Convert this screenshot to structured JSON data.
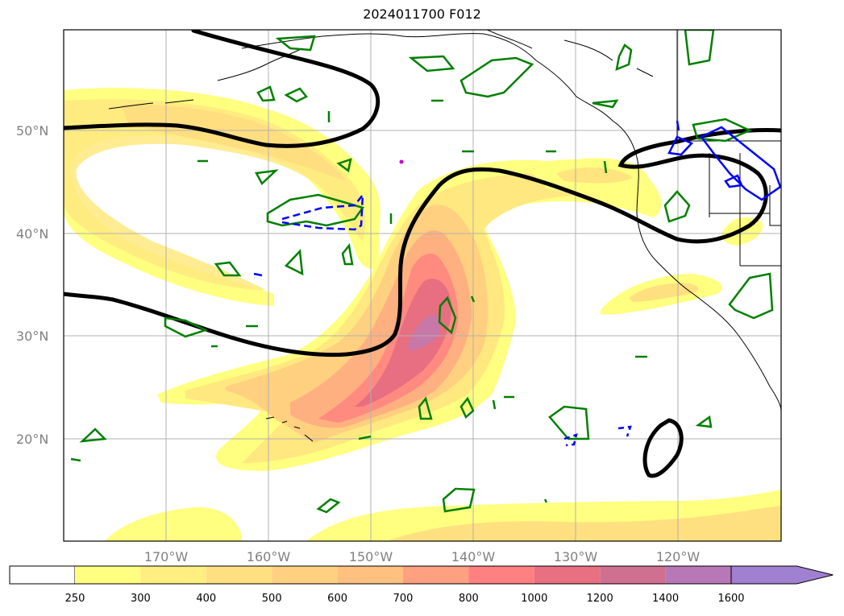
{
  "title": "2024011700 F012",
  "map": {
    "lat_labels": [
      "50°N",
      "40°N",
      "30°N",
      "20°N"
    ],
    "lon_labels": [
      "170°W",
      "160°W",
      "150°W",
      "140°W",
      "130°W",
      "120°W"
    ],
    "fill_variable_colormap": "yellow-orange-red-purple",
    "black_contour_color": "#000000",
    "green_contour_color": "#008000",
    "blue_contour_color": "#0000ff",
    "magenta_dot_color": "#cc00cc"
  },
  "colorbar": {
    "extend": "max",
    "levels": [
      {
        "label": "250",
        "color": "#ffff80"
      },
      {
        "label": "300",
        "color": "#ffee80"
      },
      {
        "label": "400",
        "color": "#ffe080"
      },
      {
        "label": "500",
        "color": "#ffd080"
      },
      {
        "label": "600",
        "color": "#ffc080"
      },
      {
        "label": "700",
        "color": "#ffa080"
      },
      {
        "label": "800",
        "color": "#ff8080"
      },
      {
        "label": "1000",
        "color": "#e87080"
      },
      {
        "label": "1200",
        "color": "#d07090"
      },
      {
        "label": "1400",
        "color": "#b878b8"
      },
      {
        "label": "1600",
        "color": "#a080d0"
      }
    ]
  }
}
